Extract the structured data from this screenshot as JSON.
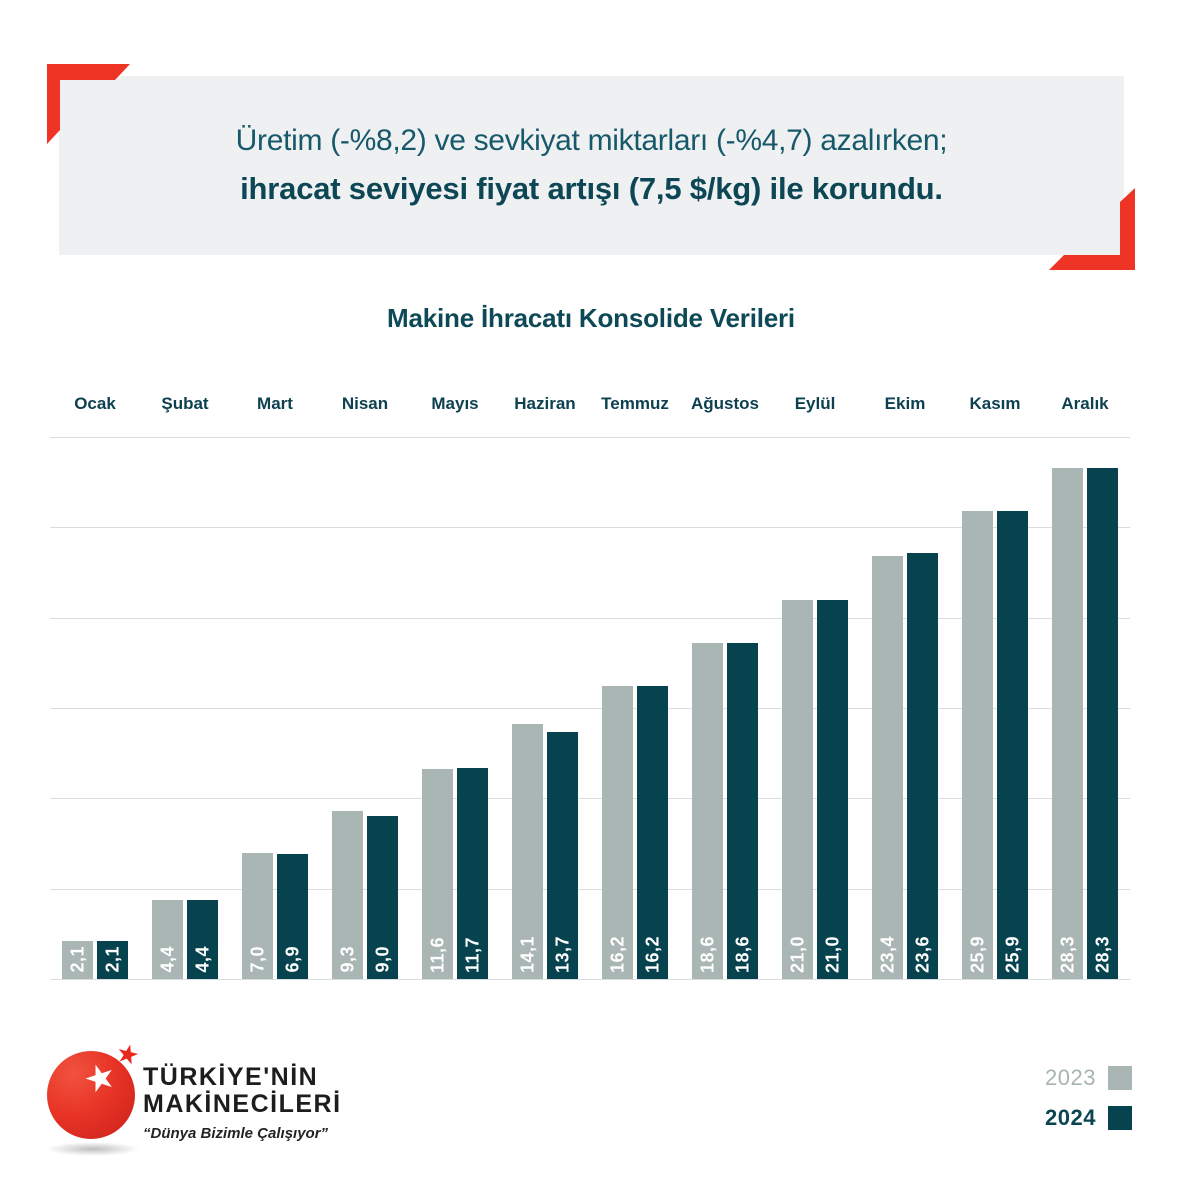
{
  "banner": {
    "line1": "Üretim (-%8,2) ve sevkiyat miktarları (-%4,7) azalırken;",
    "line2": "ihracat seviyesi fiyat artışı (7,5 $/kg) ile korundu."
  },
  "chart_data": {
    "type": "bar",
    "title": "Makine İhracatı Konsolide Verileri",
    "categories": [
      "Ocak",
      "Şubat",
      "Mart",
      "Nisan",
      "Mayıs",
      "Haziran",
      "Temmuz",
      "Ağustos",
      "Eylül",
      "Ekim",
      "Kasım",
      "Aralık"
    ],
    "series": [
      {
        "name": "2023",
        "color": "#aab6b4",
        "values": [
          2.1,
          4.4,
          7.0,
          9.3,
          11.6,
          14.1,
          16.2,
          18.6,
          21.0,
          23.4,
          25.9,
          28.3
        ],
        "value_labels": [
          "2,1",
          "4,4",
          "7,0",
          "9,3",
          "11,6",
          "14,1",
          "16,2",
          "18,6",
          "21,0",
          "23,4",
          "25,9",
          "28,3"
        ]
      },
      {
        "name": "2024",
        "color": "#07434e",
        "values": [
          2.1,
          4.4,
          6.9,
          9.0,
          11.7,
          13.7,
          16.2,
          18.6,
          21.0,
          23.6,
          25.9,
          28.3
        ],
        "value_labels": [
          "2,1",
          "4,4",
          "6,9",
          "9,0",
          "11,7",
          "13,7",
          "16,2",
          "18,6",
          "21,0",
          "23,6",
          "25,9",
          "28,3"
        ]
      }
    ],
    "xlabel": "",
    "ylabel": "",
    "ylim": [
      0,
      30
    ],
    "gridline_step": 5,
    "grid": true,
    "value_label_color": "#ffffff",
    "legend_position": "bottom-right"
  },
  "legend": {
    "items": [
      {
        "label": "2023",
        "swatch_color": "#aab6b4",
        "text_color": "#a7b4b2",
        "bold": false
      },
      {
        "label": "2024",
        "swatch_color": "#07434e",
        "text_color": "#0a4551",
        "bold": true
      }
    ]
  },
  "logo": {
    "line1": "TÜRKİYE'NİN",
    "line2": "MAKİNECİLERİ",
    "tagline": "“Dünya Bizimle Çalışıyor”",
    "big_star_icon": "★",
    "small_star_icon": "★"
  },
  "colors": {
    "accent_red": "#ee3425",
    "banner_bg": "#eef0f2",
    "bar_gray": "#aab6b4",
    "bar_teal": "#07434e",
    "gridline": "#d9dde0",
    "title_teal": "#0d4956"
  }
}
